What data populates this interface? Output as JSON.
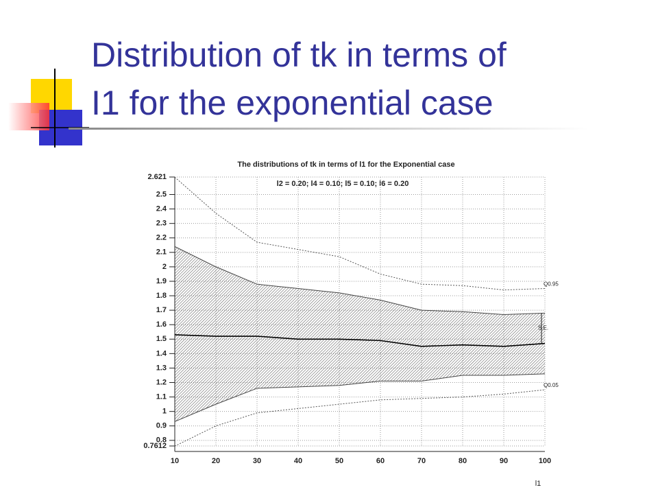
{
  "header": {
    "title_lines": [
      "Distribution of tk in terms of",
      "I1 for the exponential case"
    ]
  },
  "chart_data": {
    "type": "line",
    "title": "The distributions of tk in terms of l1 for the Exponential case",
    "subtitle": "l2 = 0.20; l4 = 0.10; l5 = 0.10; l6 = 0.20",
    "x_label": "l1",
    "x": [
      10,
      20,
      30,
      40,
      50,
      60,
      70,
      80,
      90,
      100
    ],
    "xlim": [
      10,
      100
    ],
    "xticks": [
      10,
      20,
      30,
      40,
      50,
      60,
      70,
      80,
      90,
      100
    ],
    "ylim": [
      0.7612,
      2.621
    ],
    "yticks": [
      0.7612,
      0.8,
      0.9,
      1,
      1.1,
      1.2,
      1.3,
      1.4,
      1.5,
      1.6,
      1.7,
      1.8,
      1.9,
      2,
      2.1,
      2.2,
      2.3,
      2.4,
      2.5,
      2.621
    ],
    "grid": true,
    "series": [
      {
        "name": "Q0.95",
        "color": "#555555",
        "values": [
          2.62,
          2.37,
          2.17,
          2.12,
          2.07,
          1.95,
          1.88,
          1.87,
          1.84,
          1.85
        ]
      },
      {
        "name": "Q0.05",
        "color": "#555555",
        "values": [
          0.76,
          0.9,
          0.99,
          1.02,
          1.05,
          1.08,
          1.09,
          1.1,
          1.12,
          1.15
        ]
      }
    ],
    "mean": {
      "color": "#000000",
      "values": [
        1.53,
        1.52,
        1.52,
        1.5,
        1.5,
        1.49,
        1.45,
        1.46,
        1.45,
        1.47
      ]
    },
    "band": {
      "name": "S.E.",
      "color": "#444444",
      "upper": [
        2.14,
        2.0,
        1.88,
        1.85,
        1.82,
        1.77,
        1.7,
        1.69,
        1.67,
        1.68
      ],
      "lower": [
        0.93,
        1.05,
        1.16,
        1.17,
        1.18,
        1.21,
        1.21,
        1.25,
        1.25,
        1.26
      ]
    }
  }
}
